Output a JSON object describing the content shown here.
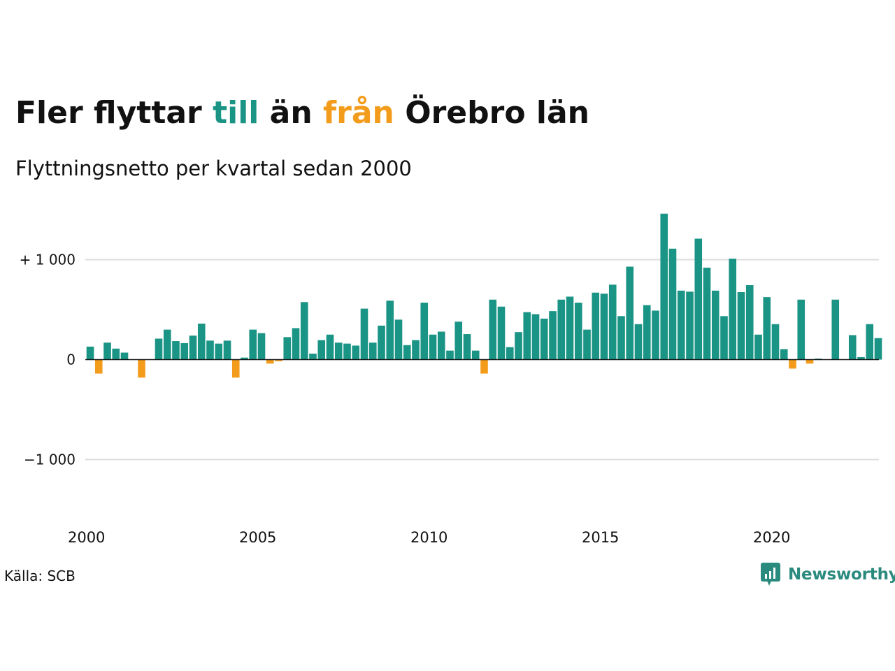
{
  "title": {
    "part1": "Fler flyttar ",
    "part2": "till",
    "part3": " än ",
    "part4": "från",
    "part5": " Örebro län"
  },
  "subtitle": "Flyttningsnetto per kvartal sedan 2000",
  "source": "Källa: SCB",
  "brand": "Newsworthy",
  "colors": {
    "positive": "#1a9485",
    "negative": "#f39c1b",
    "grid": "#dddddd",
    "zero_line": "#111111",
    "brand": "#2b8a7e"
  },
  "chart_data": {
    "type": "bar",
    "x_start": "2000 Q1",
    "x_tick_labels": [
      "2000",
      "2005",
      "2010",
      "2015",
      "2020"
    ],
    "y_tick_labels": [
      "+ 1 000",
      "0",
      "−1 000"
    ],
    "y_ticks": [
      1000,
      0,
      -1000
    ],
    "ylim": [
      -1500,
      1500
    ],
    "grid": true,
    "values": [
      130,
      -140,
      170,
      110,
      70,
      0,
      -180,
      0,
      210,
      300,
      185,
      165,
      240,
      360,
      190,
      160,
      190,
      -180,
      20,
      300,
      265,
      -40,
      -15,
      225,
      315,
      575,
      60,
      195,
      250,
      170,
      160,
      140,
      510,
      170,
      340,
      590,
      400,
      145,
      195,
      570,
      250,
      280,
      90,
      380,
      255,
      90,
      -140,
      600,
      530,
      125,
      275,
      475,
      455,
      410,
      485,
      600,
      630,
      570,
      300,
      670,
      660,
      750,
      435,
      930,
      355,
      545,
      490,
      1460,
      1110,
      690,
      680,
      1210,
      920,
      690,
      435,
      1010,
      675,
      745,
      250,
      625,
      355,
      105,
      -90,
      600,
      -40,
      10,
      0,
      600,
      0,
      245,
      25,
      355,
      215
    ]
  }
}
